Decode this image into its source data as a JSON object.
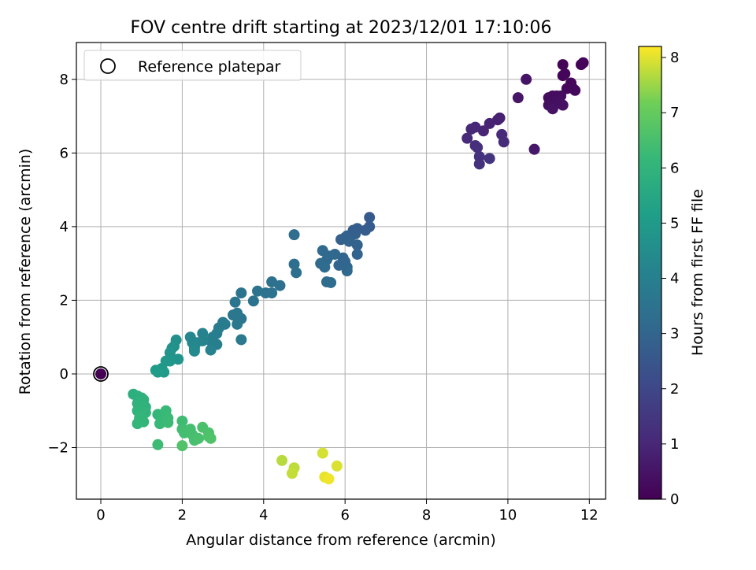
{
  "chart_data": {
    "type": "scatter",
    "title": "FOV centre drift starting at 2023/12/01 17:10:06",
    "xlabel": "Angular distance from reference (arcmin)",
    "ylabel": "Rotation from reference (arcmin)",
    "xlim": [
      -0.6,
      12.4
    ],
    "ylim": [
      -3.4,
      9.0
    ],
    "xticks": [
      0,
      2,
      4,
      6,
      8,
      10,
      12
    ],
    "yticks": [
      -2,
      0,
      2,
      4,
      6,
      8
    ],
    "xtick_labels": [
      "0",
      "2",
      "4",
      "6",
      "8",
      "10",
      "12"
    ],
    "ytick_labels": [
      "−2",
      "0",
      "2",
      "4",
      "6",
      "8"
    ],
    "grid": true,
    "legend": {
      "position": "top-left",
      "entries": [
        "Reference platepar"
      ]
    },
    "reference_point": {
      "x": 0,
      "y": 0,
      "label": "Reference platepar"
    },
    "colorbar": {
      "label": "Hours from first FF file",
      "range": [
        0,
        8.2
      ],
      "ticks": [
        0,
        1,
        2,
        3,
        4,
        5,
        6,
        7,
        8
      ],
      "tick_labels": [
        "0",
        "1",
        "2",
        "3",
        "4",
        "5",
        "6",
        "7",
        "8"
      ],
      "colormap": "viridis"
    },
    "points": [
      {
        "x": 0.0,
        "y": 0.0,
        "c": 0.0
      },
      {
        "x": 11.35,
        "y": 8.4,
        "c": 0.05
      },
      {
        "x": 11.8,
        "y": 8.4,
        "c": 0.05
      },
      {
        "x": 11.85,
        "y": 8.45,
        "c": 0.08
      },
      {
        "x": 11.35,
        "y": 8.1,
        "c": 0.1
      },
      {
        "x": 11.4,
        "y": 8.15,
        "c": 0.12
      },
      {
        "x": 11.55,
        "y": 7.9,
        "c": 0.15
      },
      {
        "x": 11.45,
        "y": 7.75,
        "c": 0.18
      },
      {
        "x": 11.6,
        "y": 7.75,
        "c": 0.2
      },
      {
        "x": 11.65,
        "y": 7.7,
        "c": 0.22
      },
      {
        "x": 11.0,
        "y": 7.5,
        "c": 0.25
      },
      {
        "x": 11.1,
        "y": 7.55,
        "c": 0.27
      },
      {
        "x": 11.2,
        "y": 7.55,
        "c": 0.3
      },
      {
        "x": 11.3,
        "y": 7.55,
        "c": 0.32
      },
      {
        "x": 11.15,
        "y": 7.4,
        "c": 0.35
      },
      {
        "x": 11.0,
        "y": 7.3,
        "c": 0.37
      },
      {
        "x": 11.25,
        "y": 7.35,
        "c": 0.4
      },
      {
        "x": 11.35,
        "y": 7.3,
        "c": 0.42
      },
      {
        "x": 11.1,
        "y": 7.2,
        "c": 0.45
      },
      {
        "x": 10.45,
        "y": 8.0,
        "c": 0.5
      },
      {
        "x": 10.25,
        "y": 7.5,
        "c": 0.55
      },
      {
        "x": 10.65,
        "y": 6.1,
        "c": 0.6
      },
      {
        "x": 9.8,
        "y": 6.95,
        "c": 0.8
      },
      {
        "x": 9.75,
        "y": 6.9,
        "c": 0.85
      },
      {
        "x": 9.55,
        "y": 6.8,
        "c": 0.9
      },
      {
        "x": 9.4,
        "y": 6.6,
        "c": 0.95
      },
      {
        "x": 9.2,
        "y": 6.7,
        "c": 1.0
      },
      {
        "x": 9.1,
        "y": 6.65,
        "c": 1.05
      },
      {
        "x": 9.0,
        "y": 6.4,
        "c": 1.1
      },
      {
        "x": 9.85,
        "y": 6.5,
        "c": 1.1
      },
      {
        "x": 9.9,
        "y": 6.3,
        "c": 1.15
      },
      {
        "x": 9.2,
        "y": 6.2,
        "c": 1.2
      },
      {
        "x": 9.25,
        "y": 6.15,
        "c": 1.25
      },
      {
        "x": 9.3,
        "y": 5.9,
        "c": 1.3
      },
      {
        "x": 9.3,
        "y": 5.7,
        "c": 1.35
      },
      {
        "x": 9.55,
        "y": 5.85,
        "c": 1.4
      },
      {
        "x": 6.6,
        "y": 4.25,
        "c": 2.6
      },
      {
        "x": 6.6,
        "y": 4.0,
        "c": 2.65
      },
      {
        "x": 6.5,
        "y": 3.9,
        "c": 2.7
      },
      {
        "x": 6.3,
        "y": 3.95,
        "c": 2.72
      },
      {
        "x": 6.2,
        "y": 3.9,
        "c": 2.75
      },
      {
        "x": 6.25,
        "y": 3.8,
        "c": 2.78
      },
      {
        "x": 6.15,
        "y": 3.75,
        "c": 2.8
      },
      {
        "x": 6.05,
        "y": 3.75,
        "c": 2.82
      },
      {
        "x": 6.0,
        "y": 3.7,
        "c": 2.85
      },
      {
        "x": 5.9,
        "y": 3.65,
        "c": 2.87
      },
      {
        "x": 6.1,
        "y": 3.6,
        "c": 2.9
      },
      {
        "x": 6.3,
        "y": 3.5,
        "c": 2.92
      },
      {
        "x": 6.3,
        "y": 3.25,
        "c": 2.95
      },
      {
        "x": 5.95,
        "y": 3.15,
        "c": 2.97
      },
      {
        "x": 6.0,
        "y": 3.05,
        "c": 3.0
      },
      {
        "x": 5.85,
        "y": 2.95,
        "c": 3.02
      },
      {
        "x": 6.05,
        "y": 2.9,
        "c": 3.05
      },
      {
        "x": 6.05,
        "y": 2.8,
        "c": 3.07
      },
      {
        "x": 5.75,
        "y": 3.25,
        "c": 3.1
      },
      {
        "x": 5.6,
        "y": 3.2,
        "c": 3.12
      },
      {
        "x": 5.55,
        "y": 3.1,
        "c": 3.15
      },
      {
        "x": 5.45,
        "y": 3.35,
        "c": 3.17
      },
      {
        "x": 5.4,
        "y": 3.0,
        "c": 3.2
      },
      {
        "x": 5.5,
        "y": 2.9,
        "c": 3.22
      },
      {
        "x": 5.55,
        "y": 2.5,
        "c": 3.25
      },
      {
        "x": 5.65,
        "y": 2.48,
        "c": 3.27
      },
      {
        "x": 4.75,
        "y": 3.78,
        "c": 3.3
      },
      {
        "x": 4.75,
        "y": 2.98,
        "c": 3.32
      },
      {
        "x": 4.8,
        "y": 2.75,
        "c": 3.35
      },
      {
        "x": 4.4,
        "y": 2.4,
        "c": 3.4
      },
      {
        "x": 4.2,
        "y": 2.5,
        "c": 3.42
      },
      {
        "x": 4.2,
        "y": 2.2,
        "c": 3.45
      },
      {
        "x": 4.05,
        "y": 2.2,
        "c": 3.47
      },
      {
        "x": 3.85,
        "y": 2.25,
        "c": 3.5
      },
      {
        "x": 3.75,
        "y": 1.98,
        "c": 3.52
      },
      {
        "x": 3.45,
        "y": 2.2,
        "c": 3.55
      },
      {
        "x": 3.45,
        "y": 1.5,
        "c": 3.6
      },
      {
        "x": 3.3,
        "y": 1.95,
        "c": 3.62
      },
      {
        "x": 3.35,
        "y": 1.65,
        "c": 3.65
      },
      {
        "x": 3.25,
        "y": 1.6,
        "c": 3.67
      },
      {
        "x": 3.35,
        "y": 1.35,
        "c": 3.7
      },
      {
        "x": 3.45,
        "y": 0.93,
        "c": 3.75
      },
      {
        "x": 3.05,
        "y": 1.35,
        "c": 3.8
      },
      {
        "x": 3.0,
        "y": 1.4,
        "c": 3.85
      },
      {
        "x": 2.9,
        "y": 1.25,
        "c": 3.87
      },
      {
        "x": 2.85,
        "y": 1.1,
        "c": 3.9
      },
      {
        "x": 2.75,
        "y": 1.0,
        "c": 3.95
      },
      {
        "x": 2.7,
        "y": 0.9,
        "c": 3.97
      },
      {
        "x": 2.85,
        "y": 0.8,
        "c": 4.0
      },
      {
        "x": 2.7,
        "y": 0.65,
        "c": 4.05
      },
      {
        "x": 2.5,
        "y": 1.1,
        "c": 4.1
      },
      {
        "x": 2.5,
        "y": 0.9,
        "c": 4.15
      },
      {
        "x": 2.35,
        "y": 0.85,
        "c": 4.2
      },
      {
        "x": 2.2,
        "y": 1.0,
        "c": 4.25
      },
      {
        "x": 2.25,
        "y": 0.85,
        "c": 4.3
      },
      {
        "x": 2.3,
        "y": 0.7,
        "c": 4.35
      },
      {
        "x": 2.3,
        "y": 0.62,
        "c": 4.4
      },
      {
        "x": 1.85,
        "y": 0.92,
        "c": 4.6
      },
      {
        "x": 1.8,
        "y": 0.75,
        "c": 4.65
      },
      {
        "x": 1.75,
        "y": 0.7,
        "c": 4.7
      },
      {
        "x": 1.7,
        "y": 0.58,
        "c": 4.75
      },
      {
        "x": 1.9,
        "y": 0.4,
        "c": 4.8
      },
      {
        "x": 1.7,
        "y": 0.35,
        "c": 4.85
      },
      {
        "x": 1.6,
        "y": 0.35,
        "c": 4.9
      },
      {
        "x": 1.5,
        "y": 0.15,
        "c": 4.95
      },
      {
        "x": 1.55,
        "y": 0.05,
        "c": 5.0
      },
      {
        "x": 1.4,
        "y": 0.05,
        "c": 5.05
      },
      {
        "x": 1.35,
        "y": 0.1,
        "c": 5.1
      },
      {
        "x": 0.8,
        "y": -0.55,
        "c": 5.8
      },
      {
        "x": 0.9,
        "y": -0.6,
        "c": 5.82
      },
      {
        "x": 1.0,
        "y": -0.65,
        "c": 5.85
      },
      {
        "x": 1.05,
        "y": -0.7,
        "c": 5.87
      },
      {
        "x": 0.9,
        "y": -0.8,
        "c": 5.9
      },
      {
        "x": 1.0,
        "y": -0.85,
        "c": 5.92
      },
      {
        "x": 1.1,
        "y": -0.9,
        "c": 5.95
      },
      {
        "x": 0.9,
        "y": -1.0,
        "c": 5.97
      },
      {
        "x": 1.1,
        "y": -1.05,
        "c": 6.0
      },
      {
        "x": 1.0,
        "y": -1.1,
        "c": 6.02
      },
      {
        "x": 0.95,
        "y": -1.2,
        "c": 6.05
      },
      {
        "x": 1.05,
        "y": -1.3,
        "c": 6.07
      },
      {
        "x": 0.9,
        "y": -1.35,
        "c": 6.1
      },
      {
        "x": 1.4,
        "y": -1.1,
        "c": 6.12
      },
      {
        "x": 1.5,
        "y": -1.15,
        "c": 6.15
      },
      {
        "x": 1.55,
        "y": -1.25,
        "c": 6.17
      },
      {
        "x": 1.45,
        "y": -1.35,
        "c": 6.2
      },
      {
        "x": 1.6,
        "y": -1.0,
        "c": 6.22
      },
      {
        "x": 1.65,
        "y": -1.2,
        "c": 6.25
      },
      {
        "x": 1.65,
        "y": -1.32,
        "c": 6.27
      },
      {
        "x": 1.4,
        "y": -1.92,
        "c": 6.3
      },
      {
        "x": 2.0,
        "y": -1.28,
        "c": 6.35
      },
      {
        "x": 2.0,
        "y": -1.5,
        "c": 6.37
      },
      {
        "x": 2.05,
        "y": -1.6,
        "c": 6.4
      },
      {
        "x": 2.15,
        "y": -1.55,
        "c": 6.42
      },
      {
        "x": 2.2,
        "y": -1.5,
        "c": 6.45
      },
      {
        "x": 2.25,
        "y": -1.65,
        "c": 6.47
      },
      {
        "x": 2.3,
        "y": -1.8,
        "c": 6.5
      },
      {
        "x": 2.4,
        "y": -1.75,
        "c": 6.52
      },
      {
        "x": 2.5,
        "y": -1.45,
        "c": 6.55
      },
      {
        "x": 2.65,
        "y": -1.6,
        "c": 6.57
      },
      {
        "x": 2.65,
        "y": -1.7,
        "c": 6.6
      },
      {
        "x": 2.7,
        "y": -1.75,
        "c": 6.62
      },
      {
        "x": 2.0,
        "y": -1.95,
        "c": 6.65
      },
      {
        "x": 4.45,
        "y": -2.35,
        "c": 7.7
      },
      {
        "x": 4.75,
        "y": -2.55,
        "c": 7.75
      },
      {
        "x": 4.7,
        "y": -2.7,
        "c": 7.8
      },
      {
        "x": 5.45,
        "y": -2.15,
        "c": 7.9
      },
      {
        "x": 5.8,
        "y": -2.5,
        "c": 7.95
      },
      {
        "x": 5.5,
        "y": -2.8,
        "c": 8.05
      },
      {
        "x": 5.6,
        "y": -2.85,
        "c": 8.1
      }
    ]
  }
}
